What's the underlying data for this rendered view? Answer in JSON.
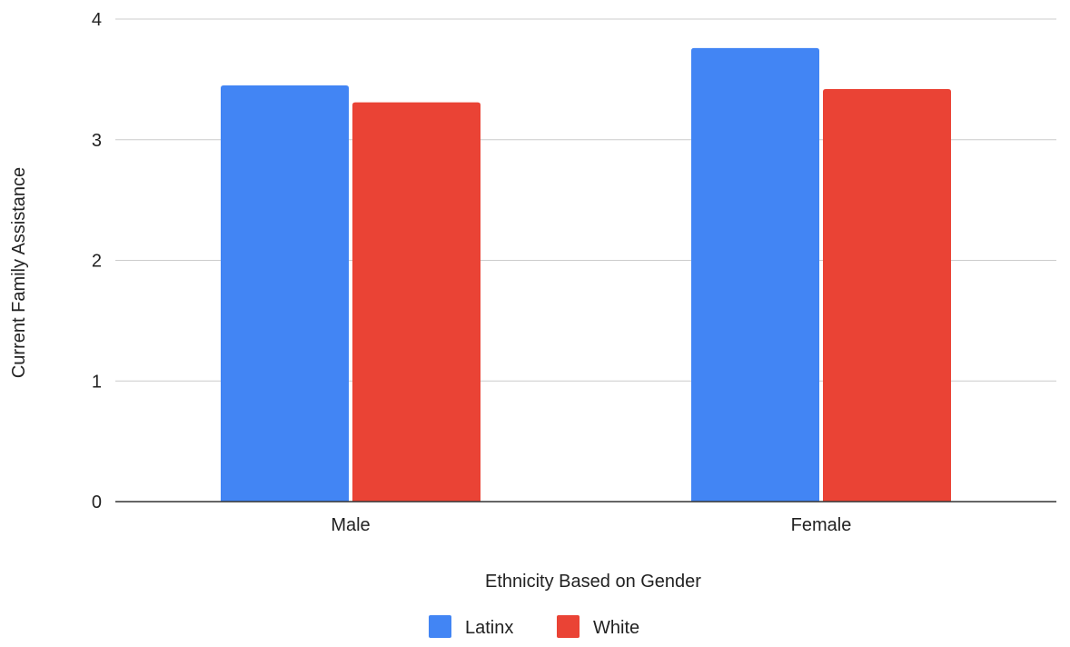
{
  "chart_data": {
    "type": "bar",
    "title": "",
    "xlabel": "Ethnicity Based on Gender",
    "ylabel": "Current Family Assistance",
    "categories": [
      "Male",
      "Female"
    ],
    "series": [
      {
        "name": "Latinx",
        "values": [
          3.45,
          3.76
        ],
        "color": "#4285F4"
      },
      {
        "name": "White",
        "values": [
          3.31,
          3.42
        ],
        "color": "#EA4335"
      }
    ],
    "ylim": [
      0,
      4
    ],
    "yticks": [
      "0",
      "1",
      "2",
      "3",
      "4"
    ],
    "grid": true,
    "legend_position": "bottom"
  }
}
